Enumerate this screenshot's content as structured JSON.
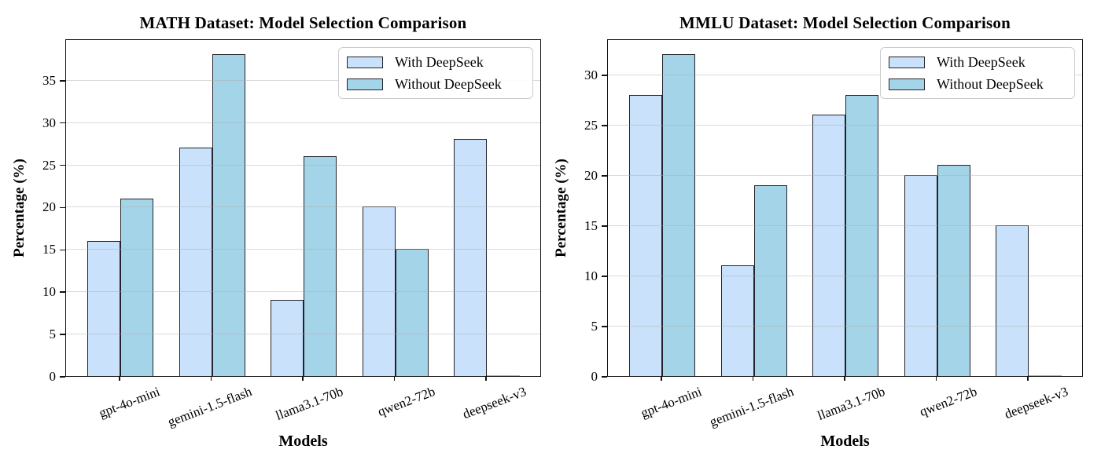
{
  "style": {
    "background": "#ffffff",
    "bar_edge": "#23232d",
    "grid_color": "rgba(170,170,170,0.45)",
    "spine_color": "#111111",
    "legend_border": "#cccccc",
    "zero_bar_line": "#b0b0b0",
    "with_color": "#c9e1fa",
    "without_color": "#a4d4e8"
  },
  "chart_data": [
    {
      "type": "bar",
      "title": "MATH Dataset: Model Selection Comparison",
      "xlabel": "Models",
      "ylabel": "Percentage (%)",
      "categories": [
        "gpt-4o-mini",
        "gemini-1.5-flash",
        "llama3.1-70b",
        "qwen2-72b",
        "deepseek-v3"
      ],
      "series": [
        {
          "name": "With DeepSeek",
          "color": "#c9e1fa",
          "values": [
            16,
            27,
            9,
            20,
            28
          ]
        },
        {
          "name": "Without DeepSeek",
          "color": "#a4d4e8",
          "values": [
            21,
            38,
            26,
            15,
            0
          ]
        }
      ],
      "yticks": [
        0,
        5,
        10,
        15,
        20,
        25,
        30,
        35
      ],
      "ylim": [
        0,
        39.9
      ],
      "grid": true,
      "legend_position": "upper right"
    },
    {
      "type": "bar",
      "title": "MMLU Dataset: Model Selection Comparison",
      "xlabel": "Models",
      "ylabel": "Percentage (%)",
      "categories": [
        "gpt-4o-mini",
        "gemini-1.5-flash",
        "llama3.1-70b",
        "qwen2-72b",
        "deepseek-v3"
      ],
      "series": [
        {
          "name": "With DeepSeek",
          "color": "#c9e1fa",
          "values": [
            28,
            11,
            26,
            20,
            15
          ]
        },
        {
          "name": "Without DeepSeek",
          "color": "#a4d4e8",
          "values": [
            32,
            19,
            28,
            21,
            0
          ]
        }
      ],
      "yticks": [
        0,
        5,
        10,
        15,
        20,
        25,
        30
      ],
      "ylim": [
        0,
        33.6
      ],
      "grid": true,
      "legend_position": "upper right"
    }
  ]
}
